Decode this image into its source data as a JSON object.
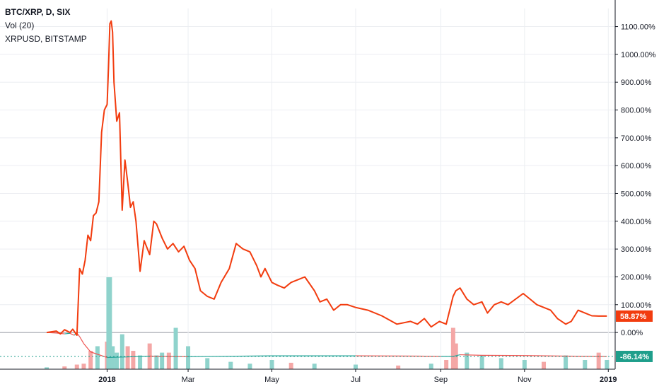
{
  "legend": {
    "title": "BTC/XRP, D, SIX",
    "volume": "Vol (20)",
    "compare": "XRPUSD, BITSTAMP"
  },
  "colors": {
    "main_line": "#f23c0f",
    "compare_line_up": "#26a69a",
    "compare_line_down": "#ef5350",
    "vol_up": "#8fd3cc",
    "vol_down": "#f4a7a6",
    "tag_main": "#f23c0f",
    "tag_compare": "#1e9e8b",
    "grid": "#eceef2",
    "zero_line": "#9598a1"
  },
  "chart_data": {
    "type": "line",
    "y_scale": "percent",
    "ylim": [
      -132,
      1165
    ],
    "x_ticks": [
      "2018",
      "Mar",
      "May",
      "Jul",
      "Sep",
      "Nov",
      "2019"
    ],
    "y_ticks": [
      "1100.00%",
      "1000.00%",
      "900.00%",
      "800.00%",
      "700.00%",
      "600.00%",
      "500.00%",
      "400.00%",
      "300.00%",
      "200.00%",
      "100.00%",
      "0.00%"
    ],
    "y_tick_values": [
      1100,
      1000,
      900,
      800,
      700,
      600,
      500,
      400,
      300,
      200,
      100,
      0
    ],
    "last_values": {
      "main": "58.87%",
      "compare": "-86.14%"
    },
    "grid": true,
    "series": [
      {
        "role": "main",
        "x": [
          "2017-11-18",
          "2017-11-25",
          "2017-11-28",
          "2017-12-01",
          "2017-12-05",
          "2017-12-07",
          "2017-12-10",
          "2017-12-12",
          "2017-12-14",
          "2017-12-16",
          "2017-12-18",
          "2017-12-20",
          "2017-12-22",
          "2017-12-24",
          "2017-12-26",
          "2017-12-28",
          "2017-12-30",
          "2018-01-01",
          "2018-01-02",
          "2018-01-03",
          "2018-01-04",
          "2018-01-05",
          "2018-01-06",
          "2018-01-08",
          "2018-01-10",
          "2018-01-12",
          "2018-01-14",
          "2018-01-16",
          "2018-01-18",
          "2018-01-20",
          "2018-01-22",
          "2018-01-25",
          "2018-01-28",
          "2018-02-01",
          "2018-02-04",
          "2018-02-06",
          "2018-02-10",
          "2018-02-14",
          "2018-02-18",
          "2018-02-22",
          "2018-02-26",
          "2018-03-02",
          "2018-03-06",
          "2018-03-10",
          "2018-03-15",
          "2018-03-20",
          "2018-03-25",
          "2018-03-31",
          "2018-04-05",
          "2018-04-10",
          "2018-04-15",
          "2018-04-20",
          "2018-04-23",
          "2018-04-26",
          "2018-05-01",
          "2018-05-05",
          "2018-05-10",
          "2018-05-15",
          "2018-05-20",
          "2018-05-25",
          "2018-06-01",
          "2018-06-05",
          "2018-06-10",
          "2018-06-15",
          "2018-06-20",
          "2018-06-25",
          "2018-07-01",
          "2018-07-10",
          "2018-07-20",
          "2018-07-31",
          "2018-08-10",
          "2018-08-15",
          "2018-08-20",
          "2018-08-25",
          "2018-08-31",
          "2018-09-05",
          "2018-09-10",
          "2018-09-12",
          "2018-09-15",
          "2018-09-20",
          "2018-09-25",
          "2018-10-01",
          "2018-10-05",
          "2018-10-10",
          "2018-10-15",
          "2018-10-20",
          "2018-10-31",
          "2018-11-05",
          "2018-11-10",
          "2018-11-15",
          "2018-11-20",
          "2018-11-25",
          "2018-12-01",
          "2018-12-05",
          "2018-12-10",
          "2018-12-15",
          "2018-12-20",
          "2018-12-25",
          "2018-12-31"
        ],
        "y": [
          0,
          5,
          -5,
          10,
          0,
          12,
          -10,
          230,
          210,
          260,
          350,
          330,
          420,
          430,
          470,
          720,
          800,
          820,
          950,
          1110,
          1120,
          1080,
          900,
          760,
          790,
          440,
          620,
          540,
          450,
          470,
          400,
          220,
          330,
          280,
          400,
          390,
          340,
          300,
          320,
          290,
          310,
          260,
          230,
          150,
          130,
          120,
          180,
          230,
          320,
          300,
          290,
          240,
          200,
          230,
          180,
          170,
          160,
          180,
          190,
          200,
          150,
          110,
          120,
          80,
          100,
          100,
          90,
          80,
          60,
          30,
          40,
          30,
          50,
          20,
          40,
          30,
          130,
          150,
          160,
          120,
          100,
          110,
          70,
          100,
          110,
          100,
          140,
          120,
          100,
          90,
          80,
          50,
          30,
          40,
          80,
          70,
          60,
          58.87,
          58.87
        ]
      },
      {
        "role": "compare",
        "x": [
          "2017-11-18",
          "2017-11-25",
          "2017-12-01",
          "2017-12-05",
          "2017-12-08",
          "2017-12-10",
          "2017-12-12",
          "2017-12-15",
          "2017-12-20",
          "2018-01-01",
          "2018-01-15",
          "2018-02-01",
          "2018-03-01",
          "2018-05-01",
          "2018-07-01",
          "2018-08-15",
          "2018-09-01",
          "2018-09-10",
          "2018-09-15",
          "2018-10-01",
          "2018-11-01",
          "2018-12-01",
          "2018-12-31"
        ],
        "y": [
          0,
          -2,
          -5,
          -3,
          -10,
          -2,
          -15,
          -40,
          -70,
          -90,
          -88,
          -85,
          -87,
          -84,
          -84,
          -85,
          -86,
          -86,
          -80,
          -82,
          -83,
          -85,
          -86.14
        ]
      }
    ],
    "volume": {
      "x": [
        "2017-11-18",
        "2017-12-01",
        "2017-12-10",
        "2017-12-15",
        "2017-12-20",
        "2017-12-25",
        "2018-01-01",
        "2018-01-02",
        "2018-01-03",
        "2018-01-05",
        "2018-01-08",
        "2018-01-12",
        "2018-01-16",
        "2018-01-20",
        "2018-01-25",
        "2018-02-01",
        "2018-02-06",
        "2018-02-10",
        "2018-02-15",
        "2018-02-20",
        "2018-03-01",
        "2018-03-15",
        "2018-04-01",
        "2018-04-15",
        "2018-05-01",
        "2018-05-15",
        "2018-06-01",
        "2018-07-01",
        "2018-08-01",
        "2018-08-25",
        "2018-09-05",
        "2018-09-10",
        "2018-09-12",
        "2018-09-20",
        "2018-10-01",
        "2018-10-15",
        "2018-11-01",
        "2018-11-15",
        "2018-12-01",
        "2018-12-15",
        "2018-12-25",
        "2018-12-31"
      ],
      "v": [
        2,
        3,
        5,
        6,
        20,
        25,
        30,
        100,
        100,
        25,
        18,
        38,
        25,
        20,
        15,
        28,
        15,
        18,
        18,
        45,
        25,
        12,
        8,
        6,
        10,
        7,
        6,
        5,
        4,
        6,
        10,
        45,
        28,
        18,
        15,
        12,
        10,
        8,
        15,
        10,
        18,
        10
      ],
      "dir": [
        "up",
        "down",
        "down",
        "down",
        "down",
        "up",
        "down",
        "up",
        "up",
        "up",
        "up",
        "up",
        "down",
        "down",
        "up",
        "down",
        "up",
        "up",
        "down",
        "up",
        "up",
        "up",
        "up",
        "up",
        "up",
        "down",
        "up",
        "up",
        "down",
        "up",
        "down",
        "down",
        "down",
        "up",
        "up",
        "up",
        "up",
        "down",
        "up",
        "up",
        "down",
        "up"
      ]
    }
  }
}
